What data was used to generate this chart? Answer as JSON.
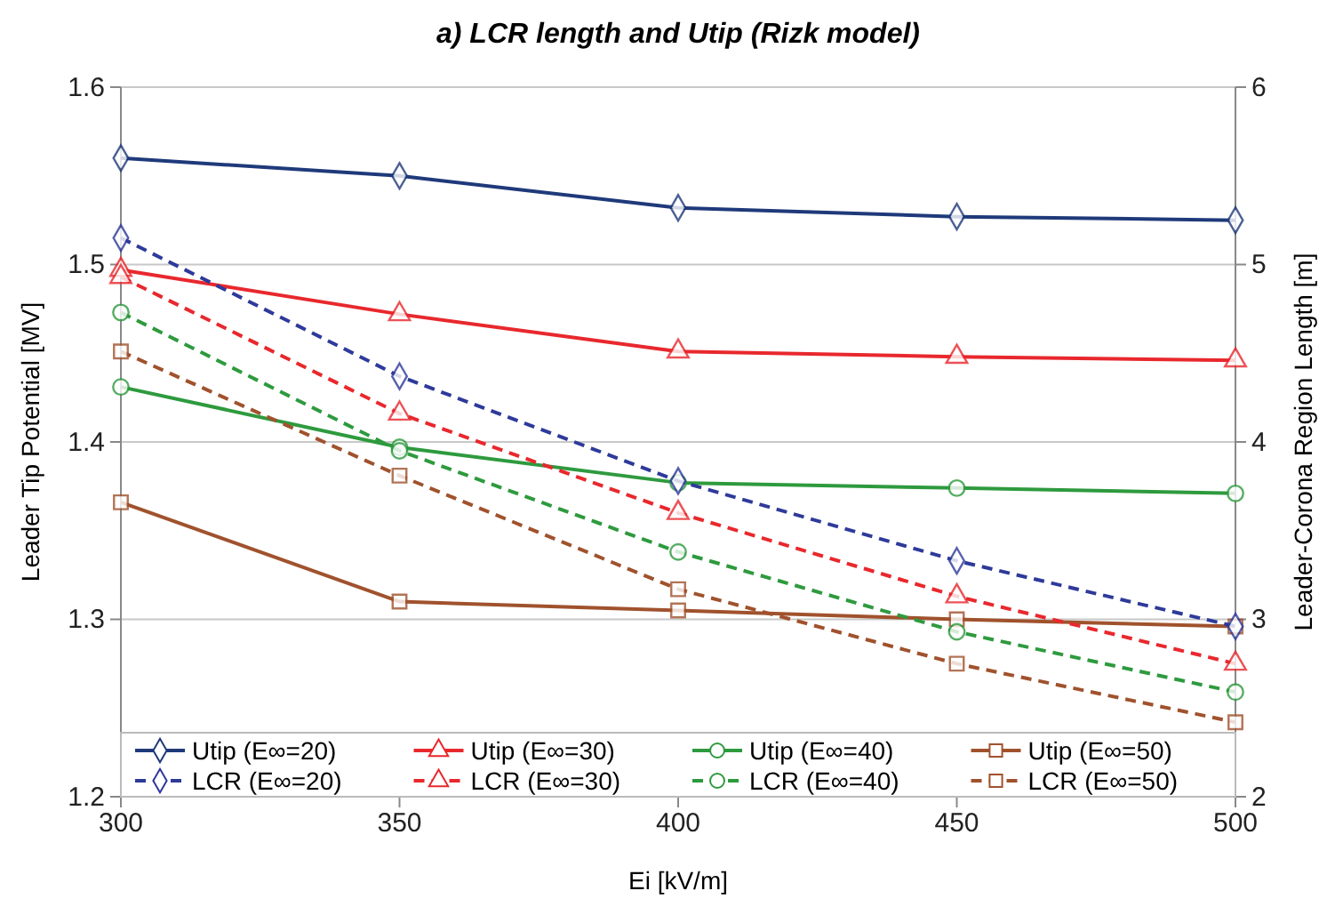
{
  "chart_data": {
    "type": "line",
    "title": "a) LCR length and Utip (Rizk model)",
    "xlabel": "Ei [kV/m]",
    "ylabel": "Leader Tip Potential [MV]",
    "y2label": "Leader-Corona Region Length [m]",
    "x": [
      300,
      350,
      400,
      450,
      500
    ],
    "xlim": [
      300,
      500
    ],
    "xticks": [
      300,
      350,
      400,
      450,
      500
    ],
    "ylim": [
      1.2,
      1.6
    ],
    "yticks": [
      1.2,
      1.3,
      1.4,
      1.5,
      1.6
    ],
    "y2lim": [
      2,
      6
    ],
    "y2ticks": [
      2,
      3,
      4,
      5,
      6
    ],
    "grid": "y",
    "legend": "bottom",
    "series": [
      {
        "name": "Utip (E∞=20)",
        "color": "#1f3a7a",
        "marker": "diamond",
        "line_style": "solid",
        "values": [
          1.56,
          1.55,
          1.532,
          1.527,
          1.525
        ]
      },
      {
        "name": "Utip (E∞=30)",
        "color": "#e8282d",
        "marker": "triangle",
        "line_style": "solid",
        "values": [
          1.497,
          1.472,
          1.451,
          1.448,
          1.446
        ]
      },
      {
        "name": "Utip (E∞=40)",
        "color": "#2e9a3e",
        "marker": "circle",
        "line_style": "solid",
        "values": [
          1.431,
          1.397,
          1.377,
          1.374,
          1.371
        ]
      },
      {
        "name": "Utip (E∞=50)",
        "color": "#a0522d",
        "marker": "square",
        "line_style": "solid",
        "values": [
          1.366,
          1.31,
          1.305,
          1.3,
          1.296
        ]
      },
      {
        "name": "LCR (E∞=20)",
        "color": "#2e3a9a",
        "marker": "diamond",
        "line_style": "dashed",
        "axis": "y2",
        "values": [
          5.15,
          4.37,
          3.78,
          3.33,
          2.96
        ]
      },
      {
        "name": "LCR (E∞=30)",
        "color": "#e8282d",
        "marker": "triangle",
        "line_style": "dashed",
        "axis": "y2",
        "values": [
          4.93,
          4.16,
          3.6,
          3.13,
          2.75
        ]
      },
      {
        "name": "LCR (E∞=40)",
        "color": "#2e9a3e",
        "marker": "circle",
        "line_style": "dashed",
        "axis": "y2",
        "values": [
          4.73,
          3.95,
          3.38,
          2.93,
          2.59
        ]
      },
      {
        "name": "LCR (E∞=50)",
        "color": "#a0522d",
        "marker": "square",
        "line_style": "dashed",
        "axis": "y2",
        "values": [
          4.51,
          3.81,
          3.17,
          2.75,
          2.42
        ]
      }
    ]
  }
}
